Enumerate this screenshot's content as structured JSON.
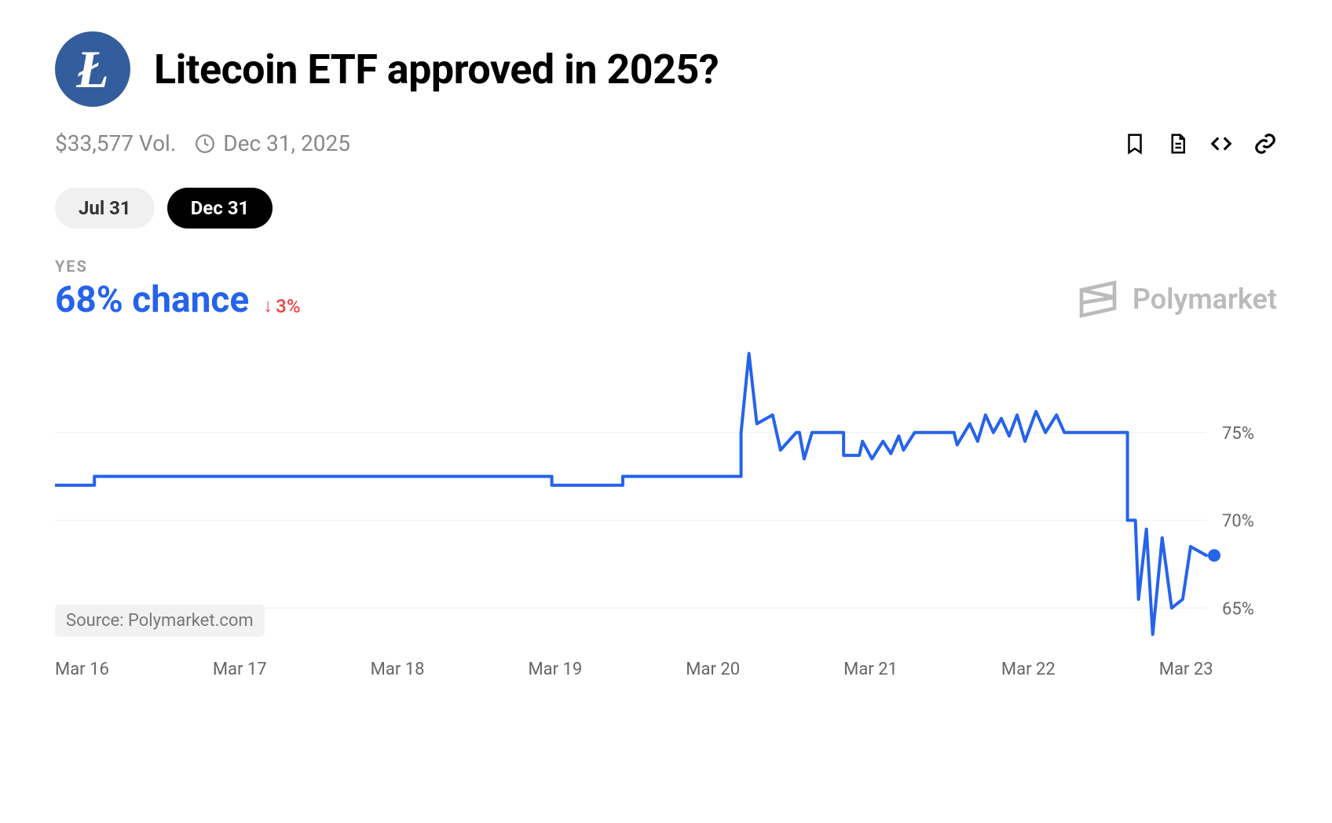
{
  "header": {
    "logo_letter": "Ł",
    "logo_bg": "#345d9d",
    "title": "Litecoin ETF approved in 2025?"
  },
  "meta": {
    "volume": "$33,577 Vol.",
    "date": "Dec 31, 2025"
  },
  "tabs": [
    {
      "label": "Jul 31",
      "active": false
    },
    {
      "label": "Dec 31",
      "active": true
    }
  ],
  "summary": {
    "yes_label": "YES",
    "chance": "68% chance",
    "delta_arrow": "↓",
    "delta_value": "3%",
    "chance_color": "#2563eb",
    "delta_color": "#ef4444"
  },
  "brand": {
    "name": "Polymarket"
  },
  "chart": {
    "type": "line",
    "line_color": "#2563eb",
    "line_width": 4,
    "marker_color": "#2563eb",
    "marker_radius": 8,
    "grid_color": "#eeeeee",
    "background_color": "#ffffff",
    "axis_font_size": 22,
    "axis_color": "#666666",
    "ylim": [
      63,
      80
    ],
    "y_ticks": [
      65,
      70,
      75
    ],
    "y_tick_labels": [
      "65%",
      "70%",
      "75%"
    ],
    "x_categories": [
      "Mar 16",
      "Mar 17",
      "Mar 18",
      "Mar 19",
      "Mar 20",
      "Mar 21",
      "Mar 22",
      "Mar 23"
    ],
    "x_range": [
      0,
      7.3
    ],
    "series": [
      {
        "x": 0.0,
        "y": 72.0
      },
      {
        "x": 0.25,
        "y": 72.0
      },
      {
        "x": 0.25,
        "y": 72.5
      },
      {
        "x": 3.15,
        "y": 72.5
      },
      {
        "x": 3.15,
        "y": 72.0
      },
      {
        "x": 3.6,
        "y": 72.0
      },
      {
        "x": 3.6,
        "y": 72.5
      },
      {
        "x": 4.35,
        "y": 72.5
      },
      {
        "x": 4.35,
        "y": 75.0
      },
      {
        "x": 4.4,
        "y": 79.5
      },
      {
        "x": 4.45,
        "y": 75.5
      },
      {
        "x": 4.55,
        "y": 76.0
      },
      {
        "x": 4.6,
        "y": 74.0
      },
      {
        "x": 4.7,
        "y": 75.0
      },
      {
        "x": 4.72,
        "y": 75.0
      },
      {
        "x": 4.75,
        "y": 73.5
      },
      {
        "x": 4.8,
        "y": 75.0
      },
      {
        "x": 5.0,
        "y": 75.0
      },
      {
        "x": 5.0,
        "y": 73.7
      },
      {
        "x": 5.1,
        "y": 73.7
      },
      {
        "x": 5.12,
        "y": 74.5
      },
      {
        "x": 5.18,
        "y": 73.5
      },
      {
        "x": 5.25,
        "y": 74.5
      },
      {
        "x": 5.3,
        "y": 73.8
      },
      {
        "x": 5.35,
        "y": 74.8
      },
      {
        "x": 5.38,
        "y": 74.0
      },
      {
        "x": 5.45,
        "y": 75.0
      },
      {
        "x": 5.7,
        "y": 75.0
      },
      {
        "x": 5.72,
        "y": 74.3
      },
      {
        "x": 5.8,
        "y": 75.5
      },
      {
        "x": 5.85,
        "y": 74.5
      },
      {
        "x": 5.9,
        "y": 76.0
      },
      {
        "x": 5.95,
        "y": 75.0
      },
      {
        "x": 6.0,
        "y": 75.8
      },
      {
        "x": 6.05,
        "y": 74.8
      },
      {
        "x": 6.1,
        "y": 76.0
      },
      {
        "x": 6.15,
        "y": 74.5
      },
      {
        "x": 6.22,
        "y": 76.2
      },
      {
        "x": 6.28,
        "y": 75.0
      },
      {
        "x": 6.35,
        "y": 76.0
      },
      {
        "x": 6.4,
        "y": 75.0
      },
      {
        "x": 6.8,
        "y": 75.0
      },
      {
        "x": 6.8,
        "y": 70.0
      },
      {
        "x": 6.85,
        "y": 70.0
      },
      {
        "x": 6.87,
        "y": 65.5
      },
      {
        "x": 6.92,
        "y": 69.5
      },
      {
        "x": 6.96,
        "y": 63.5
      },
      {
        "x": 7.02,
        "y": 69.0
      },
      {
        "x": 7.08,
        "y": 65.0
      },
      {
        "x": 7.15,
        "y": 65.5
      },
      {
        "x": 7.2,
        "y": 68.5
      },
      {
        "x": 7.3,
        "y": 68.0
      }
    ],
    "source_label": "Source: Polymarket.com"
  }
}
